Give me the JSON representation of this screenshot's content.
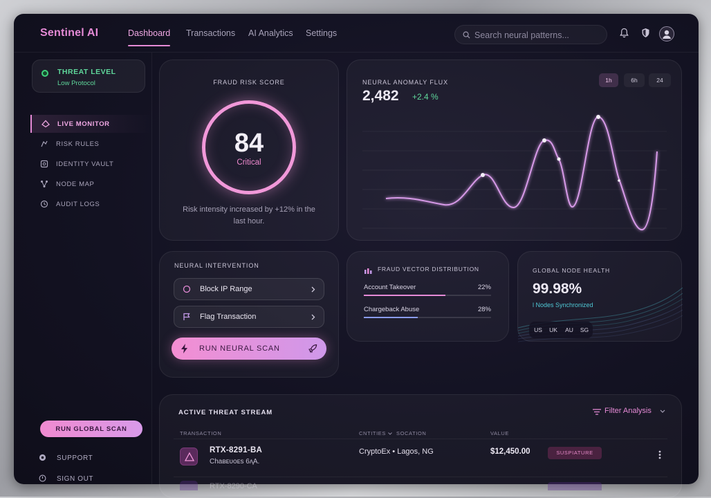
{
  "brand": "Sentinel AI",
  "nav": {
    "tabs": [
      {
        "label": "Dashboard",
        "active": true
      },
      {
        "label": "Transactions",
        "active": false
      },
      {
        "label": "AI Analytics",
        "active": false
      },
      {
        "label": "Settings",
        "active": false
      }
    ],
    "search_placeholder": "Search neural patterns...",
    "icons": [
      "bell-icon",
      "shield-icon",
      "avatar"
    ]
  },
  "sidebar": {
    "threat": {
      "title": "THREAT LEVEL",
      "status": "Low Protocol",
      "color": "#3fd27c"
    },
    "items": [
      {
        "label": "LIVE MONITOR",
        "icon": "monitor-icon",
        "active": true
      },
      {
        "label": "RISK RULES",
        "icon": "rules-icon",
        "active": false
      },
      {
        "label": "IDENTITY VAULT",
        "icon": "vault-icon",
        "active": false
      },
      {
        "label": "NODE MAP",
        "icon": "node-map-icon",
        "active": false
      },
      {
        "label": "AUDIT LOGS",
        "icon": "history-icon",
        "active": false
      }
    ],
    "global_scan": "RUN GLOBAL SCAN",
    "support": "SUPPORT",
    "sign_out": "SIGN OUT"
  },
  "risk": {
    "title": "FRAUD RISK SCORE",
    "score": "84",
    "severity": "Critical",
    "note": "Risk intensity increased by +12% in the last hour."
  },
  "flux": {
    "title": "NEURAL ANOMALY FLUX",
    "value": "2,482",
    "delta": "+2.4 %",
    "ranges": [
      {
        "label": "1h",
        "active": true
      },
      {
        "label": "6h",
        "active": false
      },
      {
        "label": "24",
        "active": false
      }
    ]
  },
  "intervention": {
    "title": "NEURAL INTERVENTION",
    "actions": [
      {
        "label": "Block IP Range",
        "icon": "circle-icon"
      },
      {
        "label": "Flag Transaction",
        "icon": "flag-icon"
      }
    ],
    "scan_label": "RUN NEURAL SCAN"
  },
  "vector": {
    "title": "FRAUD VECTOR DISTRIBUTION",
    "rows": [
      {
        "name": "Account Takeover",
        "pct": "22%",
        "fill": 0.64
      },
      {
        "name": "Chargeback Abuse",
        "pct": "28%",
        "fill": 0.42
      }
    ]
  },
  "health": {
    "title": "GLOBAL NODE HEALTH",
    "value": "99.98%",
    "sub": "l Nodes Synchronized",
    "regions": [
      "US",
      "UK",
      "AU",
      "SG"
    ]
  },
  "stream": {
    "title": "ACTIVE THREAT STREAM",
    "filter": "Filter Analysis",
    "columns": [
      "TRANSACTION",
      "CNTITIES",
      "SOCATION",
      "VALUE"
    ],
    "rows": [
      {
        "id": "RTX-8291-BA",
        "sub": "Chaʙᴇᴜᴏᴇs 6ʌ̧A.",
        "entity": "CryptoEx • Lagos, NG",
        "value": "$12,450.00",
        "status": "SUSPIATURE"
      }
    ],
    "ghost_id": "RTX-8290-CA"
  },
  "colors": {
    "accent": "#e58ad6",
    "positive": "#5fd79b",
    "info": "#4fc7d4"
  }
}
